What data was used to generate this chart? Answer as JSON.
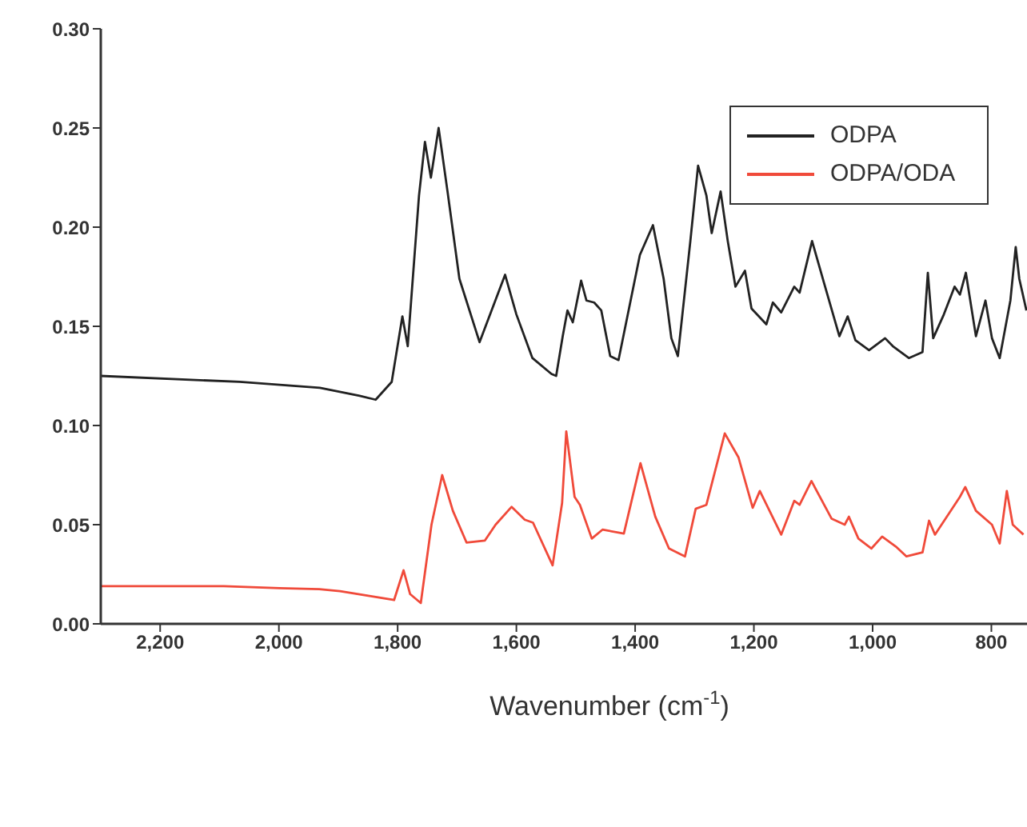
{
  "chart_data": {
    "type": "line",
    "xlabel": "Wavenumber (cm$^{-1}$)",
    "xlim": [
      2300,
      740
    ],
    "xticks": [
      {
        "value": 2200,
        "label": "2,200"
      },
      {
        "value": 2000,
        "label": "2,000"
      },
      {
        "value": 1800,
        "label": "1,800"
      },
      {
        "value": 1600,
        "label": "1,600"
      },
      {
        "value": 1400,
        "label": "1,400"
      },
      {
        "value": 1200,
        "label": "1,200"
      },
      {
        "value": 1000,
        "label": "1,000"
      },
      {
        "value": 800,
        "label": "800"
      }
    ],
    "ylim": [
      0,
      0.3
    ],
    "yticks": [
      {
        "value": 0,
        "label": "0.00"
      },
      {
        "value": 0.05,
        "label": "0.05"
      },
      {
        "value": 0.1,
        "label": "0.10"
      },
      {
        "value": 0.15,
        "label": "0.15"
      },
      {
        "value": 0.2,
        "label": "0.20"
      },
      {
        "value": 0.25,
        "label": "0.25"
      },
      {
        "value": 0.3,
        "label": "0.30"
      }
    ],
    "grid": false,
    "legend": "top right",
    "marker": "none",
    "line_style": "solid",
    "series": [
      {
        "name": "ODPA",
        "color": "#222222",
        "x": [
          2300,
          2066,
          1931,
          1864,
          1837,
          1810,
          1792,
          1783,
          1764,
          1754,
          1744,
          1731,
          1716,
          1696,
          1662,
          1619,
          1600,
          1573,
          1541,
          1533,
          1522,
          1514,
          1505,
          1491,
          1482,
          1469,
          1457,
          1442,
          1428,
          1392,
          1370,
          1352,
          1339,
          1328,
          1307,
          1294,
          1280,
          1271,
          1256,
          1244,
          1231,
          1215,
          1204,
          1179,
          1168,
          1154,
          1132,
          1123,
          1102,
          1082,
          1056,
          1042,
          1029,
          1006,
          979,
          966,
          939,
          916,
          907,
          898,
          880,
          862,
          853,
          843,
          826,
          810,
          799,
          786,
          768,
          759,
          753,
          741
        ],
        "values": [
          0.125,
          0.122,
          0.119,
          0.115,
          0.113,
          0.122,
          0.155,
          0.14,
          0.216,
          0.243,
          0.225,
          0.25,
          0.218,
          0.174,
          0.142,
          0.176,
          0.156,
          0.134,
          0.126,
          0.125,
          0.145,
          0.158,
          0.152,
          0.173,
          0.163,
          0.162,
          0.158,
          0.135,
          0.133,
          0.186,
          0.201,
          0.174,
          0.144,
          0.135,
          0.193,
          0.231,
          0.216,
          0.197,
          0.218,
          0.193,
          0.17,
          0.178,
          0.159,
          0.151,
          0.162,
          0.157,
          0.17,
          0.167,
          0.193,
          0.172,
          0.145,
          0.155,
          0.143,
          0.138,
          0.144,
          0.14,
          0.134,
          0.137,
          0.177,
          0.144,
          0.156,
          0.17,
          0.166,
          0.177,
          0.145,
          0.163,
          0.144,
          0.134,
          0.163,
          0.19,
          0.174,
          0.158
        ]
      },
      {
        "name": "ODPA/ODA",
        "color": "#f04a3a",
        "x": [
          2300,
          2093,
          1999,
          1932,
          1897,
          1806,
          1790,
          1779,
          1761,
          1743,
          1725,
          1707,
          1684,
          1653,
          1635,
          1608,
          1586,
          1572,
          1539,
          1523,
          1516,
          1502,
          1493,
          1473,
          1455,
          1419,
          1391,
          1366,
          1343,
          1316,
          1298,
          1280,
          1249,
          1226,
          1202,
          1190,
          1154,
          1132,
          1123,
          1103,
          1069,
          1047,
          1040,
          1024,
          1002,
          984,
          961,
          943,
          916,
          905,
          895,
          853,
          844,
          826,
          799,
          786,
          774,
          764,
          746
        ],
        "values": [
          0.019,
          0.019,
          0.018,
          0.0175,
          0.0165,
          0.012,
          0.027,
          0.015,
          0.0105,
          0.05,
          0.075,
          0.057,
          0.041,
          0.042,
          0.05,
          0.059,
          0.0525,
          0.051,
          0.0295,
          0.061,
          0.097,
          0.064,
          0.06,
          0.043,
          0.0475,
          0.0455,
          0.081,
          0.054,
          0.038,
          0.034,
          0.058,
          0.06,
          0.096,
          0.084,
          0.0585,
          0.067,
          0.045,
          0.062,
          0.06,
          0.072,
          0.053,
          0.05,
          0.054,
          0.043,
          0.038,
          0.044,
          0.039,
          0.034,
          0.036,
          0.052,
          0.045,
          0.064,
          0.069,
          0.057,
          0.05,
          0.0405,
          0.067,
          0.05,
          0.045
        ]
      }
    ]
  }
}
